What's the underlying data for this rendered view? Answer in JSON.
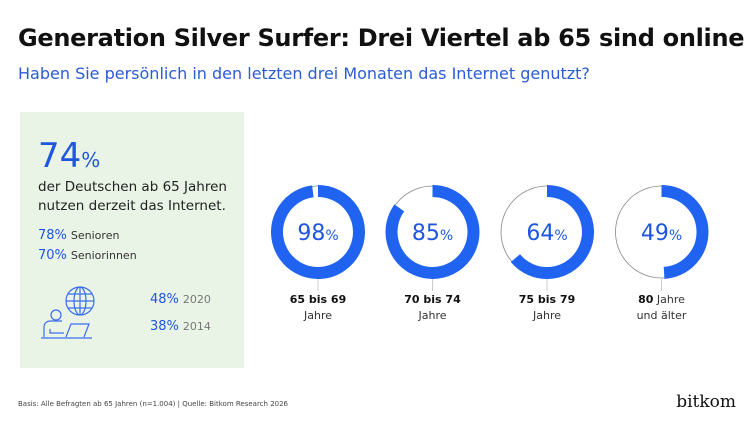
{
  "title": "Generation Silver Surfer: Drei Viertel ab 65 sind online",
  "subtitle": "Haben Sie persönlich in den letzten drei Monaten das Internet genutzt?",
  "panel": {
    "big_value": "74",
    "big_unit": "%",
    "desc_line1": "der Deutschen ab 65 Jahren",
    "desc_line2": "nutzen derzeit das Internet.",
    "stats": [
      {
        "value": "78%",
        "label": "Senioren"
      },
      {
        "value": "70%",
        "label": "Seniorinnen"
      }
    ],
    "years": [
      {
        "value": "48%",
        "label": "2020"
      },
      {
        "value": "38%",
        "label": "2014"
      }
    ],
    "icon": "person-laptop-globe-icon"
  },
  "chart_data": {
    "type": "pie",
    "variant": "donut",
    "categories": [
      "65 bis 69 Jahre",
      "70 bis 74 Jahre",
      "75 bis 79 Jahre",
      "80 Jahre und älter"
    ],
    "values": [
      98,
      85,
      64,
      49
    ],
    "unit": "%",
    "labels": [
      {
        "bold": "65 bis 69",
        "rest": "",
        "line2": "Jahre",
        "value": "98"
      },
      {
        "bold": "70 bis 74",
        "rest": "",
        "line2": "Jahre",
        "value": "85"
      },
      {
        "bold": "75 bis 79",
        "rest": "",
        "line2": "Jahre",
        "value": "64"
      },
      {
        "bold": "80",
        "rest": " Jahre",
        "line2": "und älter",
        "value": "49"
      }
    ],
    "colors": {
      "fill": "#1f63f0",
      "track": "#888888"
    }
  },
  "footer": "Basis: Alle Befragten ab 65 Jahren (n=1.004) | Quelle: Bitkom Research 2026",
  "logo": "bitkom"
}
